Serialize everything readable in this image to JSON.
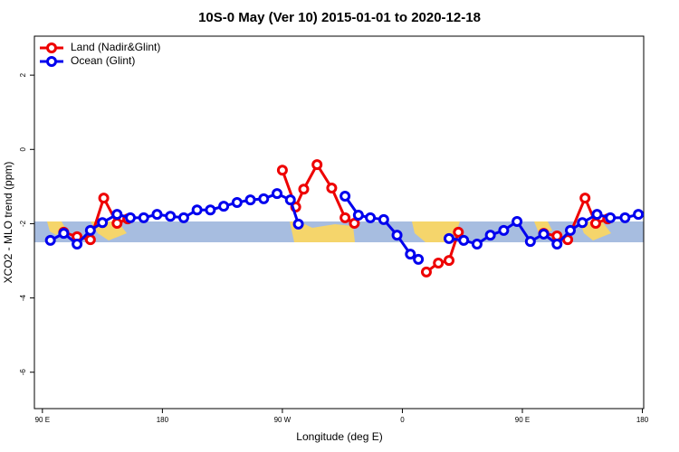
{
  "chart_data": {
    "type": "line",
    "title": "10S-0 May (Ver 10)   2015-01-01 to 2020-12-18",
    "x_label": "Longitude (deg E)",
    "y_label": "XCO2 - MLO trend (ppm)",
    "xlim": [
      84,
      541
    ],
    "ylim": [
      -6.98,
      3.05
    ],
    "xticks": [
      {
        "value": 90,
        "label": "90 E"
      },
      {
        "value": 180,
        "label": "180"
      },
      {
        "value": 270,
        "label": "90 W"
      },
      {
        "value": 360,
        "label": "0"
      },
      {
        "value": 450,
        "label": "90 E"
      },
      {
        "value": 540,
        "label": "180"
      }
    ],
    "yticks": [
      -6,
      -4,
      -2,
      0,
      2
    ],
    "legend": "top-left",
    "series": [
      {
        "name": "Land (Nadir&Glint)",
        "color": "#ee0000",
        "x": [
          106,
          116,
          126,
          136,
          146,
          154,
          null,
          270,
          280,
          286,
          296,
          307,
          317,
          324,
          null,
          378,
          387,
          395,
          402,
          null,
          466,
          476,
          484,
          497,
          505,
          514
        ],
        "values": [
          -2.23,
          -2.35,
          -2.43,
          -1.31,
          -1.99,
          -1.87,
          null,
          -0.56,
          -1.55,
          -1.07,
          -0.41,
          -1.04,
          -1.84,
          -1.99,
          null,
          -3.3,
          -3.06,
          -2.99,
          -2.23,
          null,
          -2.26,
          -2.33,
          -2.43,
          -1.31,
          -1.99,
          -1.87
        ]
      },
      {
        "name": "Ocean (Glint)",
        "color": "#0000ee",
        "x": [
          96,
          106,
          116,
          126,
          135,
          146,
          156,
          166,
          176,
          186,
          196,
          206,
          216,
          226,
          236,
          246,
          256,
          266,
          276,
          282,
          null,
          317,
          327,
          336,
          346,
          356,
          366,
          372,
          null,
          395,
          406,
          416,
          426,
          436,
          446,
          456,
          466,
          476,
          486,
          495,
          506,
          516,
          527,
          537
        ],
        "values": [
          -2.45,
          -2.26,
          -2.55,
          -2.18,
          -1.97,
          -1.75,
          -1.84,
          -1.84,
          -1.75,
          -1.8,
          -1.84,
          -1.63,
          -1.63,
          -1.53,
          -1.43,
          -1.36,
          -1.33,
          -1.19,
          -1.36,
          -2.01,
          null,
          -1.26,
          -1.77,
          -1.84,
          -1.89,
          -2.31,
          -2.82,
          -2.96,
          null,
          -2.4,
          -2.45,
          -2.55,
          -2.31,
          -2.18,
          -1.94,
          -2.48,
          -2.28,
          -2.55,
          -2.18,
          -1.97,
          -1.75,
          -1.84,
          -1.84,
          -1.75
        ]
      }
    ]
  }
}
